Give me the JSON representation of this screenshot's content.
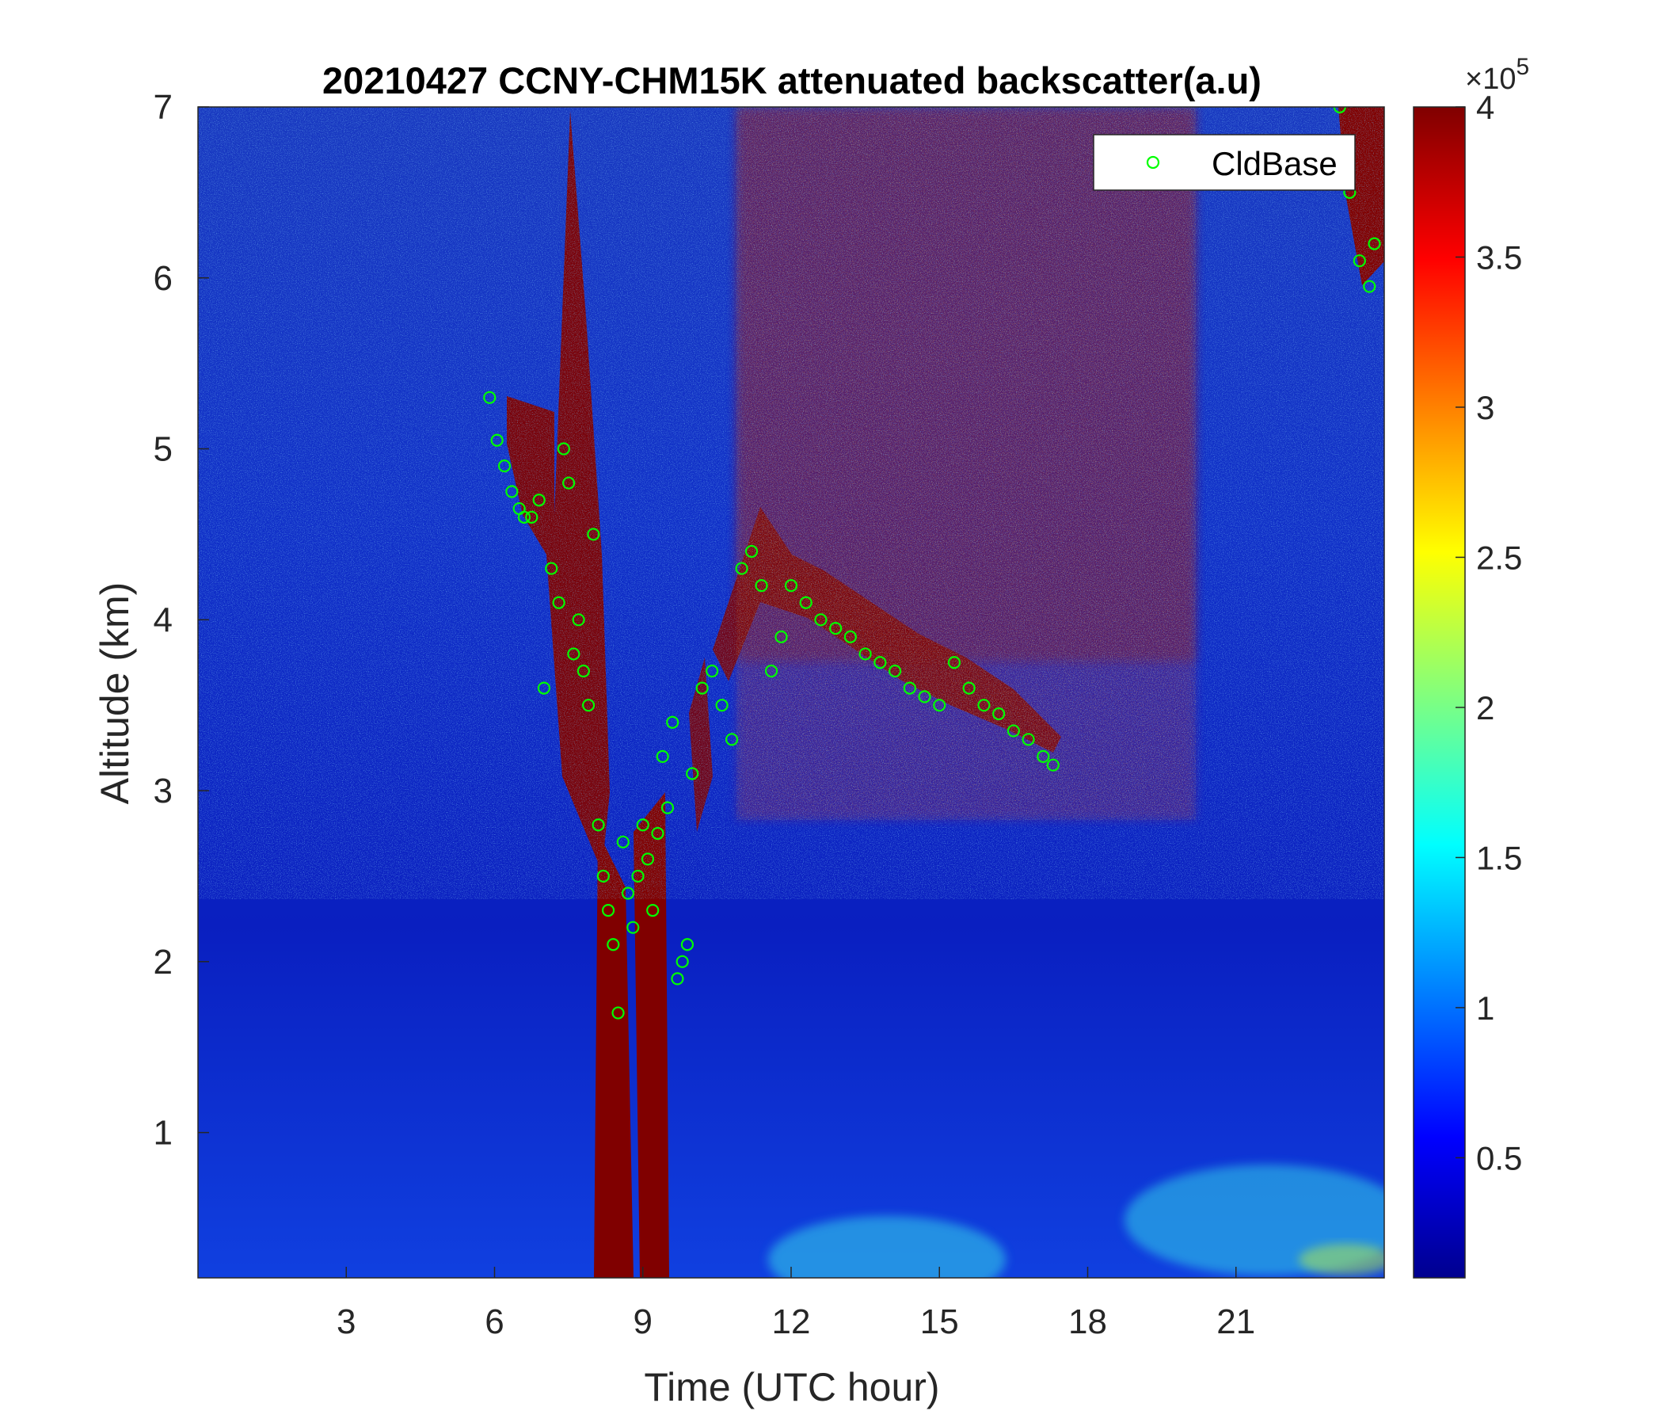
{
  "chart_data": {
    "type": "heatmap",
    "title": "20210427 CCNY-CHM15K attenuated backscatter(a.u)",
    "xlabel": "Time (UTC hour)",
    "ylabel": "Altitude (km)",
    "xlim": [
      0,
      24
    ],
    "ylim": [
      0.15,
      7
    ],
    "x_ticks": [
      3,
      6,
      9,
      12,
      15,
      18,
      21
    ],
    "y_ticks": [
      1,
      2,
      3,
      4,
      5,
      6,
      7
    ],
    "colorbar": {
      "colormap": "jet",
      "clim": [
        0.1,
        4
      ],
      "ticks": [
        0.5,
        1,
        1.5,
        2,
        2.5,
        3,
        3.5,
        4
      ],
      "exponent_label": "×10",
      "exponent_power": "5"
    },
    "legend": {
      "position": "top-right",
      "entries": [
        "CldBase"
      ]
    },
    "series": [
      {
        "name": "CldBase",
        "marker": "circle",
        "color": "#00ff00",
        "x": [
          5.9,
          6.05,
          6.2,
          6.35,
          6.5,
          6.6,
          6.75,
          6.9,
          7.0,
          7.15,
          7.3,
          7.4,
          7.5,
          7.6,
          7.7,
          7.8,
          7.9,
          8.0,
          8.1,
          8.2,
          8.3,
          8.4,
          8.5,
          8.6,
          8.7,
          8.8,
          8.9,
          9.0,
          9.1,
          9.2,
          9.3,
          9.4,
          9.5,
          9.6,
          9.7,
          9.8,
          9.9,
          10.0,
          10.2,
          10.4,
          10.6,
          10.8,
          11.0,
          11.2,
          11.4,
          11.6,
          11.8,
          12.0,
          12.3,
          12.6,
          12.9,
          13.2,
          13.5,
          13.8,
          14.1,
          14.4,
          14.7,
          15.0,
          15.3,
          15.6,
          15.9,
          16.2,
          16.5,
          16.8,
          17.1,
          17.3,
          23.1,
          23.3,
          23.5,
          23.7,
          23.8
        ],
        "y": [
          5.3,
          5.05,
          4.9,
          4.75,
          4.65,
          4.6,
          4.6,
          4.7,
          3.6,
          4.3,
          4.1,
          5.0,
          4.8,
          3.8,
          4.0,
          3.7,
          3.5,
          4.5,
          2.8,
          2.5,
          2.3,
          2.1,
          1.7,
          2.7,
          2.4,
          2.2,
          2.5,
          2.8,
          2.6,
          2.3,
          2.75,
          3.2,
          2.9,
          3.4,
          1.9,
          2.0,
          2.1,
          3.1,
          3.6,
          3.7,
          3.5,
          3.3,
          4.3,
          4.4,
          4.2,
          3.7,
          3.9,
          4.2,
          4.1,
          4.0,
          3.95,
          3.9,
          3.8,
          3.75,
          3.7,
          3.6,
          3.55,
          3.5,
          3.75,
          3.6,
          3.5,
          3.45,
          3.35,
          3.3,
          3.2,
          3.15,
          7.0,
          6.5,
          6.1,
          5.95,
          6.2
        ]
      }
    ]
  }
}
